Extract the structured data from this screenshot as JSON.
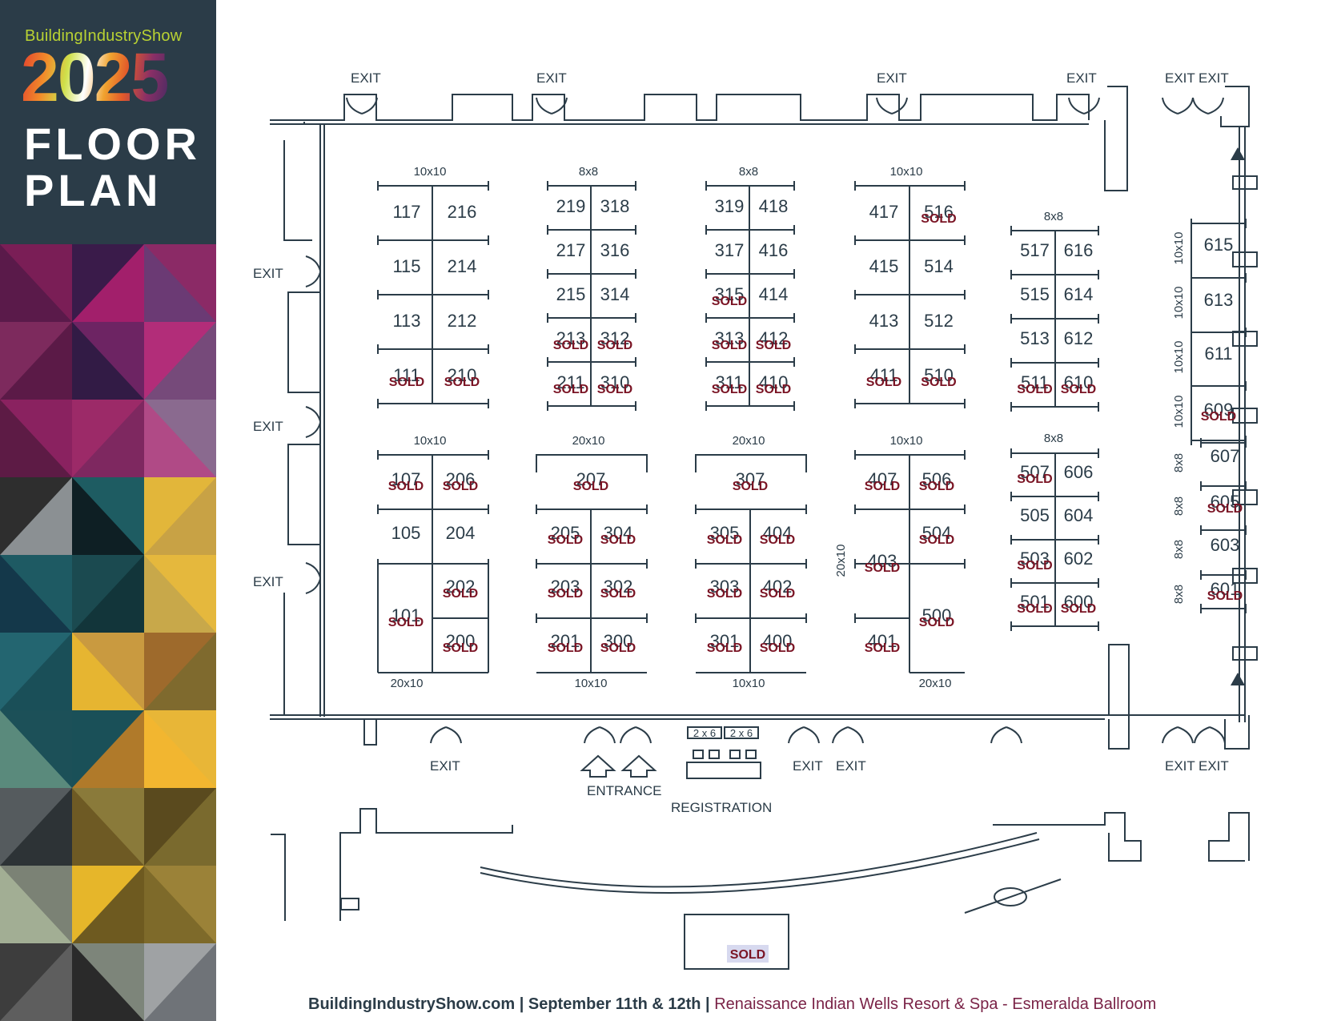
{
  "header": {
    "brand": "BuildingIndustryShow",
    "year": "2025",
    "title_line1": "FLOOR",
    "title_line2": "PLAN"
  },
  "colors": {
    "header_bg": "#2b3c48",
    "brand_green": "#b9d233",
    "sold_red": "#7a1424",
    "venue_maroon": "#7a2347"
  },
  "labels": {
    "exit": "EXIT",
    "entrance": "ENTRANCE",
    "registration": "REGISTRATION",
    "reg_table": "2 x 6",
    "sold": "SOLD"
  },
  "footer": {
    "site": "BuildingIndustryShow.com",
    "sep1": " | ",
    "dates": "September 11th & 12th",
    "sep2": " | ",
    "venue": "Renaissance Indian Wells Resort & Spa - Esmeralda Ballroom"
  },
  "booths": [
    {
      "id": "117",
      "sold": false
    },
    {
      "id": "216",
      "sold": false
    },
    {
      "id": "115",
      "sold": false
    },
    {
      "id": "214",
      "sold": false
    },
    {
      "id": "113",
      "sold": false
    },
    {
      "id": "212",
      "sold": false
    },
    {
      "id": "111",
      "sold": true
    },
    {
      "id": "210",
      "sold": true
    },
    {
      "id": "219",
      "sold": false
    },
    {
      "id": "318",
      "sold": false
    },
    {
      "id": "217",
      "sold": false
    },
    {
      "id": "316",
      "sold": false
    },
    {
      "id": "215",
      "sold": false
    },
    {
      "id": "314",
      "sold": false
    },
    {
      "id": "213",
      "sold": true
    },
    {
      "id": "312",
      "sold": true
    },
    {
      "id": "211",
      "sold": true
    },
    {
      "id": "310",
      "sold": true
    },
    {
      "id": "319",
      "sold": false
    },
    {
      "id": "418",
      "sold": false
    },
    {
      "id": "317",
      "sold": false
    },
    {
      "id": "416",
      "sold": false
    },
    {
      "id": "315",
      "sold": true
    },
    {
      "id": "414",
      "sold": false
    },
    {
      "id": "313",
      "sold": true
    },
    {
      "id": "412",
      "sold": true
    },
    {
      "id": "311",
      "sold": true
    },
    {
      "id": "410",
      "sold": true
    },
    {
      "id": "417",
      "sold": false
    },
    {
      "id": "516",
      "sold": true
    },
    {
      "id": "415",
      "sold": false
    },
    {
      "id": "514",
      "sold": false
    },
    {
      "id": "413",
      "sold": false
    },
    {
      "id": "512",
      "sold": false
    },
    {
      "id": "411",
      "sold": true
    },
    {
      "id": "510",
      "sold": true
    },
    {
      "id": "517",
      "sold": false
    },
    {
      "id": "616",
      "sold": false
    },
    {
      "id": "515",
      "sold": false
    },
    {
      "id": "614",
      "sold": false
    },
    {
      "id": "513",
      "sold": false
    },
    {
      "id": "612",
      "sold": false
    },
    {
      "id": "511",
      "sold": true
    },
    {
      "id": "610",
      "sold": true
    },
    {
      "id": "615",
      "sold": false
    },
    {
      "id": "613",
      "sold": false
    },
    {
      "id": "611",
      "sold": false
    },
    {
      "id": "609",
      "sold": true
    },
    {
      "id": "607",
      "sold": false
    },
    {
      "id": "605",
      "sold": true
    },
    {
      "id": "603",
      "sold": false
    },
    {
      "id": "601",
      "sold": true
    },
    {
      "id": "107",
      "sold": true
    },
    {
      "id": "206",
      "sold": true
    },
    {
      "id": "105",
      "sold": false
    },
    {
      "id": "204",
      "sold": false
    },
    {
      "id": "202",
      "sold": true
    },
    {
      "id": "101",
      "sold": true
    },
    {
      "id": "200",
      "sold": true
    },
    {
      "id": "207",
      "sold": true
    },
    {
      "id": "205",
      "sold": true
    },
    {
      "id": "304",
      "sold": true
    },
    {
      "id": "203",
      "sold": true
    },
    {
      "id": "302",
      "sold": true
    },
    {
      "id": "201",
      "sold": true
    },
    {
      "id": "300",
      "sold": true
    },
    {
      "id": "307",
      "sold": true
    },
    {
      "id": "305",
      "sold": true
    },
    {
      "id": "404",
      "sold": true
    },
    {
      "id": "303",
      "sold": true
    },
    {
      "id": "402",
      "sold": true
    },
    {
      "id": "301",
      "sold": true
    },
    {
      "id": "400",
      "sold": true
    },
    {
      "id": "407",
      "sold": true
    },
    {
      "id": "506",
      "sold": true
    },
    {
      "id": "504",
      "sold": true
    },
    {
      "id": "403",
      "sold": true
    },
    {
      "id": "500",
      "sold": true
    },
    {
      "id": "401",
      "sold": true
    },
    {
      "id": "507",
      "sold": true
    },
    {
      "id": "606",
      "sold": false
    },
    {
      "id": "505",
      "sold": false
    },
    {
      "id": "604",
      "sold": false
    },
    {
      "id": "503",
      "sold": true
    },
    {
      "id": "602",
      "sold": false
    },
    {
      "id": "501",
      "sold": true
    },
    {
      "id": "600",
      "sold": true
    }
  ],
  "size_labels": [
    "10x10",
    "8x8",
    "8x8",
    "10x10",
    "8x8",
    "10x10",
    "20x10",
    "20x10",
    "10x10",
    "8x8",
    "20x10",
    "10x10",
    "10x10",
    "20x10",
    "20x10",
    "10x10",
    "10x10",
    "10x10",
    "10x10",
    "8x8",
    "8x8",
    "8x8",
    "8x8"
  ],
  "patio_booth": {
    "sold": true
  }
}
